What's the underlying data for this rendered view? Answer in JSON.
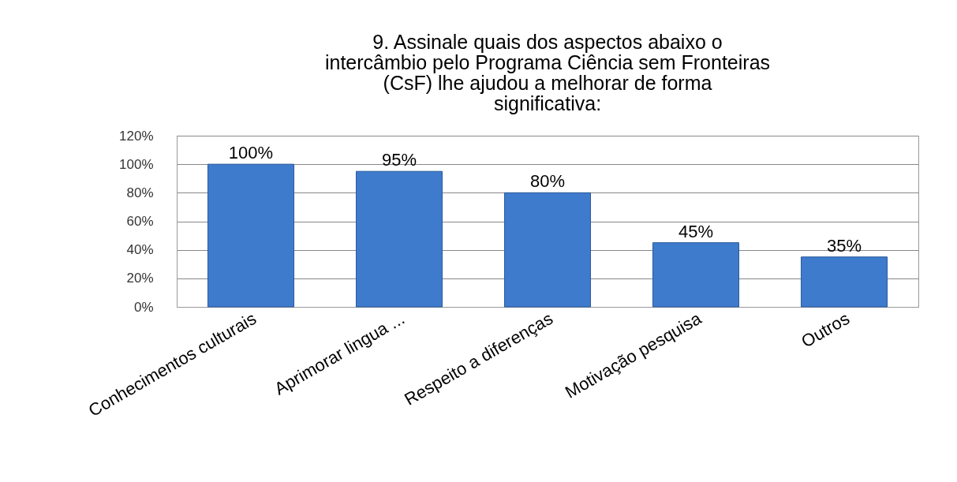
{
  "chart_data": {
    "type": "bar",
    "title": "9. Assinale quais dos aspectos abaixo o intercâmbio pelo Programa Ciência sem Fronteiras (CsF) lhe ajudou a melhorar de forma significativa:",
    "categories": [
      "Conhecimentos culturais",
      "Aprimorar lingua ...",
      "Respeito a diferenças",
      "Motivação pesquisa",
      "Outros"
    ],
    "values": [
      100,
      95,
      80,
      45,
      35
    ],
    "value_labels": [
      "100%",
      "95%",
      "80%",
      "45%",
      "35%"
    ],
    "color": "#3f7bcd",
    "ylim": [
      0,
      120
    ],
    "yticks": [
      {
        "value": 0,
        "label": "0%"
      },
      {
        "value": 20,
        "label": "20%"
      },
      {
        "value": 40,
        "label": "40%"
      },
      {
        "value": 60,
        "label": "60%"
      },
      {
        "value": 80,
        "label": "80%"
      },
      {
        "value": 100,
        "label": "100%"
      },
      {
        "value": 120,
        "label": "120%"
      }
    ],
    "grid": "y"
  }
}
